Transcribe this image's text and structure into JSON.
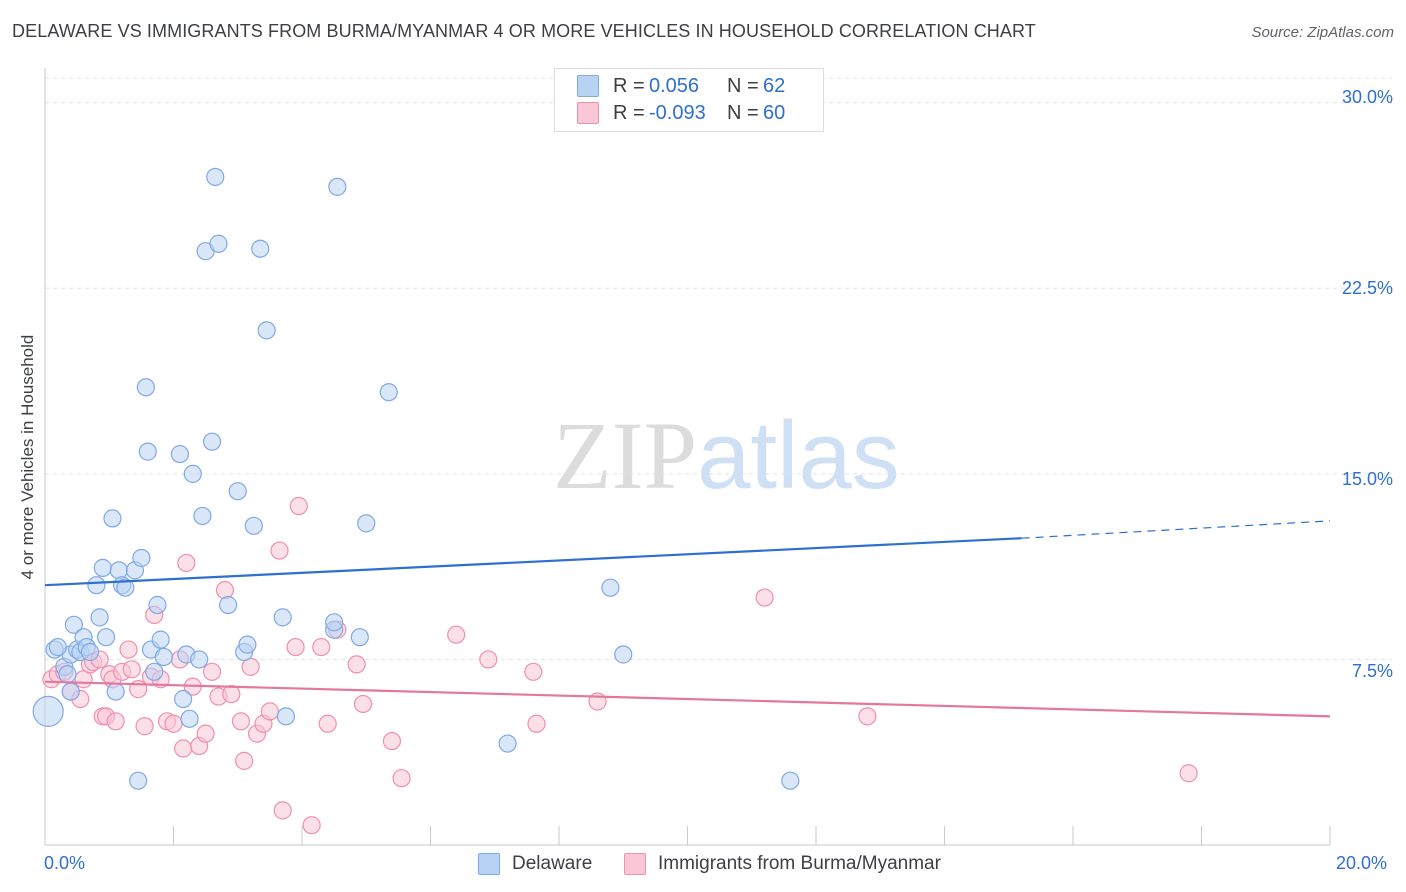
{
  "header": {
    "title": "DELAWARE VS IMMIGRANTS FROM BURMA/MYANMAR 4 OR MORE VEHICLES IN HOUSEHOLD CORRELATION CHART",
    "source": "Source: ZipAtlas.com"
  },
  "watermark": {
    "zip": "ZIP",
    "atlas": "atlas"
  },
  "legend": {
    "rows": [
      {
        "r_label": "R =",
        "r_value": "0.056",
        "n_label": "N =",
        "n_value": "62",
        "color": "#aecbf2"
      },
      {
        "r_label": "R =",
        "r_value": "-0.093",
        "n_label": "N =",
        "n_value": "60",
        "color": "#f7bfd0"
      }
    ]
  },
  "chart_data": {
    "type": "scatter",
    "title": "DELAWARE VS IMMIGRANTS FROM BURMA/MYANMAR 4 OR MORE VEHICLES IN HOUSEHOLD CORRELATION CHART",
    "xlabel": "",
    "ylabel": "4 or more Vehicles in Household",
    "xlim": [
      0,
      20
    ],
    "ylim": [
      0,
      31
    ],
    "x_tick_labels": [
      "0.0%",
      "20.0%"
    ],
    "y_ticks": [
      7.5,
      15.0,
      22.5,
      30.0
    ],
    "y_tick_labels": [
      "7.5%",
      "15.0%",
      "22.5%",
      "30.0%"
    ],
    "grid": "horizontal dashed",
    "legend_position": "top-center",
    "series": [
      {
        "name": "Delaware",
        "color": "#7fa9e6",
        "fill": "#b9d3f4",
        "trend_color": "#2e6fd0",
        "trend": {
          "x0": 0,
          "y0": 10.5,
          "x1": 15.2,
          "y1": 12.4,
          "dash_to_x": 20,
          "dash_to_y": 13.1
        },
        "points": [
          [
            0.15,
            7.9
          ],
          [
            0.3,
            7.2
          ],
          [
            0.35,
            6.9
          ],
          [
            0.4,
            7.7
          ],
          [
            0.4,
            6.2
          ],
          [
            0.45,
            8.9
          ],
          [
            0.5,
            7.9
          ],
          [
            0.55,
            7.8
          ],
          [
            0.6,
            8.4
          ],
          [
            0.65,
            8.0
          ],
          [
            0.7,
            7.8
          ],
          [
            0.8,
            10.5
          ],
          [
            0.85,
            9.2
          ],
          [
            0.9,
            11.2
          ],
          [
            0.95,
            8.4
          ],
          [
            1.05,
            13.2
          ],
          [
            1.1,
            6.2
          ],
          [
            1.15,
            11.1
          ],
          [
            1.2,
            10.5
          ],
          [
            1.25,
            10.4
          ],
          [
            1.4,
            11.1
          ],
          [
            1.5,
            11.6
          ],
          [
            1.57,
            18.5
          ],
          [
            1.6,
            15.9
          ],
          [
            1.65,
            7.9
          ],
          [
            1.7,
            7.0
          ],
          [
            1.75,
            9.7
          ],
          [
            1.8,
            8.3
          ],
          [
            1.85,
            7.6
          ],
          [
            2.1,
            15.8
          ],
          [
            2.15,
            5.9
          ],
          [
            2.2,
            7.7
          ],
          [
            2.25,
            5.1
          ],
          [
            2.3,
            15.0
          ],
          [
            2.4,
            7.5
          ],
          [
            2.45,
            13.3
          ],
          [
            2.5,
            24.0
          ],
          [
            2.6,
            16.3
          ],
          [
            2.65,
            27.0
          ],
          [
            2.7,
            24.3
          ],
          [
            2.85,
            9.7
          ],
          [
            3.0,
            14.3
          ],
          [
            3.1,
            7.8
          ],
          [
            3.15,
            8.1
          ],
          [
            3.25,
            12.9
          ],
          [
            3.35,
            24.1
          ],
          [
            3.45,
            20.8
          ],
          [
            3.7,
            9.2
          ],
          [
            3.75,
            5.2
          ],
          [
            4.5,
            8.7
          ],
          [
            4.5,
            9.0
          ],
          [
            4.55,
            26.6
          ],
          [
            4.9,
            8.4
          ],
          [
            5.0,
            13.0
          ],
          [
            5.35,
            18.3
          ],
          [
            7.2,
            4.1
          ],
          [
            8.8,
            10.4
          ],
          [
            11.6,
            2.6
          ],
          [
            1.45,
            2.6
          ],
          [
            0.2,
            8.0
          ],
          [
            9.0,
            7.7
          ],
          [
            0.05,
            5.4
          ]
        ]
      },
      {
        "name": "Immigrants from Burma/Myanmar",
        "color": "#f08fae",
        "fill": "#f9c7d6",
        "trend_color": "#e4779c",
        "trend": {
          "x0": 0,
          "y0": 6.6,
          "x1": 20,
          "y1": 5.2
        },
        "points": [
          [
            0.1,
            6.7
          ],
          [
            0.2,
            6.9
          ],
          [
            0.3,
            7.0
          ],
          [
            0.4,
            6.2
          ],
          [
            0.55,
            5.9
          ],
          [
            0.6,
            6.7
          ],
          [
            0.7,
            7.3
          ],
          [
            0.75,
            7.4
          ],
          [
            0.85,
            7.5
          ],
          [
            0.9,
            5.2
          ],
          [
            0.95,
            5.2
          ],
          [
            1.0,
            6.9
          ],
          [
            1.05,
            6.7
          ],
          [
            1.1,
            5.0
          ],
          [
            1.2,
            7.0
          ],
          [
            1.3,
            7.9
          ],
          [
            1.35,
            7.1
          ],
          [
            1.45,
            6.3
          ],
          [
            1.55,
            4.8
          ],
          [
            1.65,
            6.8
          ],
          [
            1.7,
            9.3
          ],
          [
            1.8,
            6.7
          ],
          [
            1.9,
            5.0
          ],
          [
            2.0,
            4.9
          ],
          [
            2.1,
            7.5
          ],
          [
            2.15,
            3.9
          ],
          [
            2.2,
            11.4
          ],
          [
            2.3,
            6.4
          ],
          [
            2.4,
            4.0
          ],
          [
            2.5,
            4.5
          ],
          [
            2.6,
            7.0
          ],
          [
            2.7,
            6.0
          ],
          [
            2.8,
            10.3
          ],
          [
            2.9,
            6.1
          ],
          [
            3.05,
            5.0
          ],
          [
            3.1,
            3.4
          ],
          [
            3.2,
            7.2
          ],
          [
            3.3,
            4.5
          ],
          [
            3.4,
            4.9
          ],
          [
            3.5,
            5.4
          ],
          [
            3.65,
            11.9
          ],
          [
            3.7,
            1.4
          ],
          [
            3.9,
            8.0
          ],
          [
            3.95,
            13.7
          ],
          [
            4.15,
            0.8
          ],
          [
            4.3,
            8.0
          ],
          [
            4.4,
            4.9
          ],
          [
            4.55,
            8.7
          ],
          [
            4.85,
            7.3
          ],
          [
            4.95,
            5.7
          ],
          [
            5.4,
            4.2
          ],
          [
            5.55,
            2.7
          ],
          [
            6.4,
            8.5
          ],
          [
            6.9,
            7.5
          ],
          [
            7.6,
            7.0
          ],
          [
            7.65,
            4.9
          ],
          [
            8.6,
            5.8
          ],
          [
            11.2,
            10.0
          ],
          [
            12.8,
            5.2
          ],
          [
            17.8,
            2.9
          ]
        ]
      }
    ]
  },
  "bottom_legend": [
    "Delaware",
    "Immigrants from Burma/Myanmar"
  ]
}
